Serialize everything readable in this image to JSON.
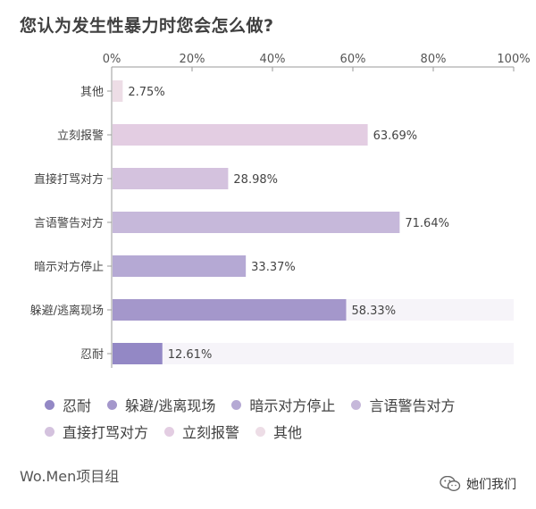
{
  "title": "您认为发生性暴力时您会怎么做?",
  "footer": {
    "source": "Wo.Men项目组",
    "account": "她们我们"
  },
  "chart_data": {
    "type": "bar",
    "orientation": "horizontal",
    "xlim": [
      0,
      100
    ],
    "ticks": [
      "0%",
      "20%",
      "40%",
      "60%",
      "80%",
      "100%"
    ],
    "tick_values": [
      0,
      20,
      40,
      60,
      80,
      100
    ],
    "categories": [
      "其他",
      "立刻报警",
      "直接打骂对方",
      "言语警告对方",
      "暗示对方停止",
      "躲避/逃离现场",
      "忍耐"
    ],
    "values": [
      2.75,
      63.69,
      28.98,
      71.64,
      33.37,
      58.33,
      12.61
    ],
    "value_labels": [
      "2.75%",
      "63.69%",
      "28.98%",
      "71.64%",
      "33.37%",
      "58.33%",
      "12.61%"
    ],
    "colors": [
      "#eddde6",
      "#e3cde2",
      "#d4c2de",
      "#c6b8da",
      "#b5a9d4",
      "#a497cb",
      "#9388c5"
    ],
    "track_color": "#f6f4f9",
    "track_shown": [
      false,
      false,
      false,
      false,
      false,
      true,
      true
    ],
    "legend_order": [
      "忍耐",
      "躲避/逃离现场",
      "暗示对方停止",
      "言语警告对方",
      "直接打骂对方",
      "立刻报警",
      "其他"
    ],
    "legend_colors": [
      "#9388c5",
      "#a497cb",
      "#b5a9d4",
      "#c6b8da",
      "#d4c2de",
      "#e3cde2",
      "#eddde6"
    ],
    "legend_placement": "bottom"
  }
}
